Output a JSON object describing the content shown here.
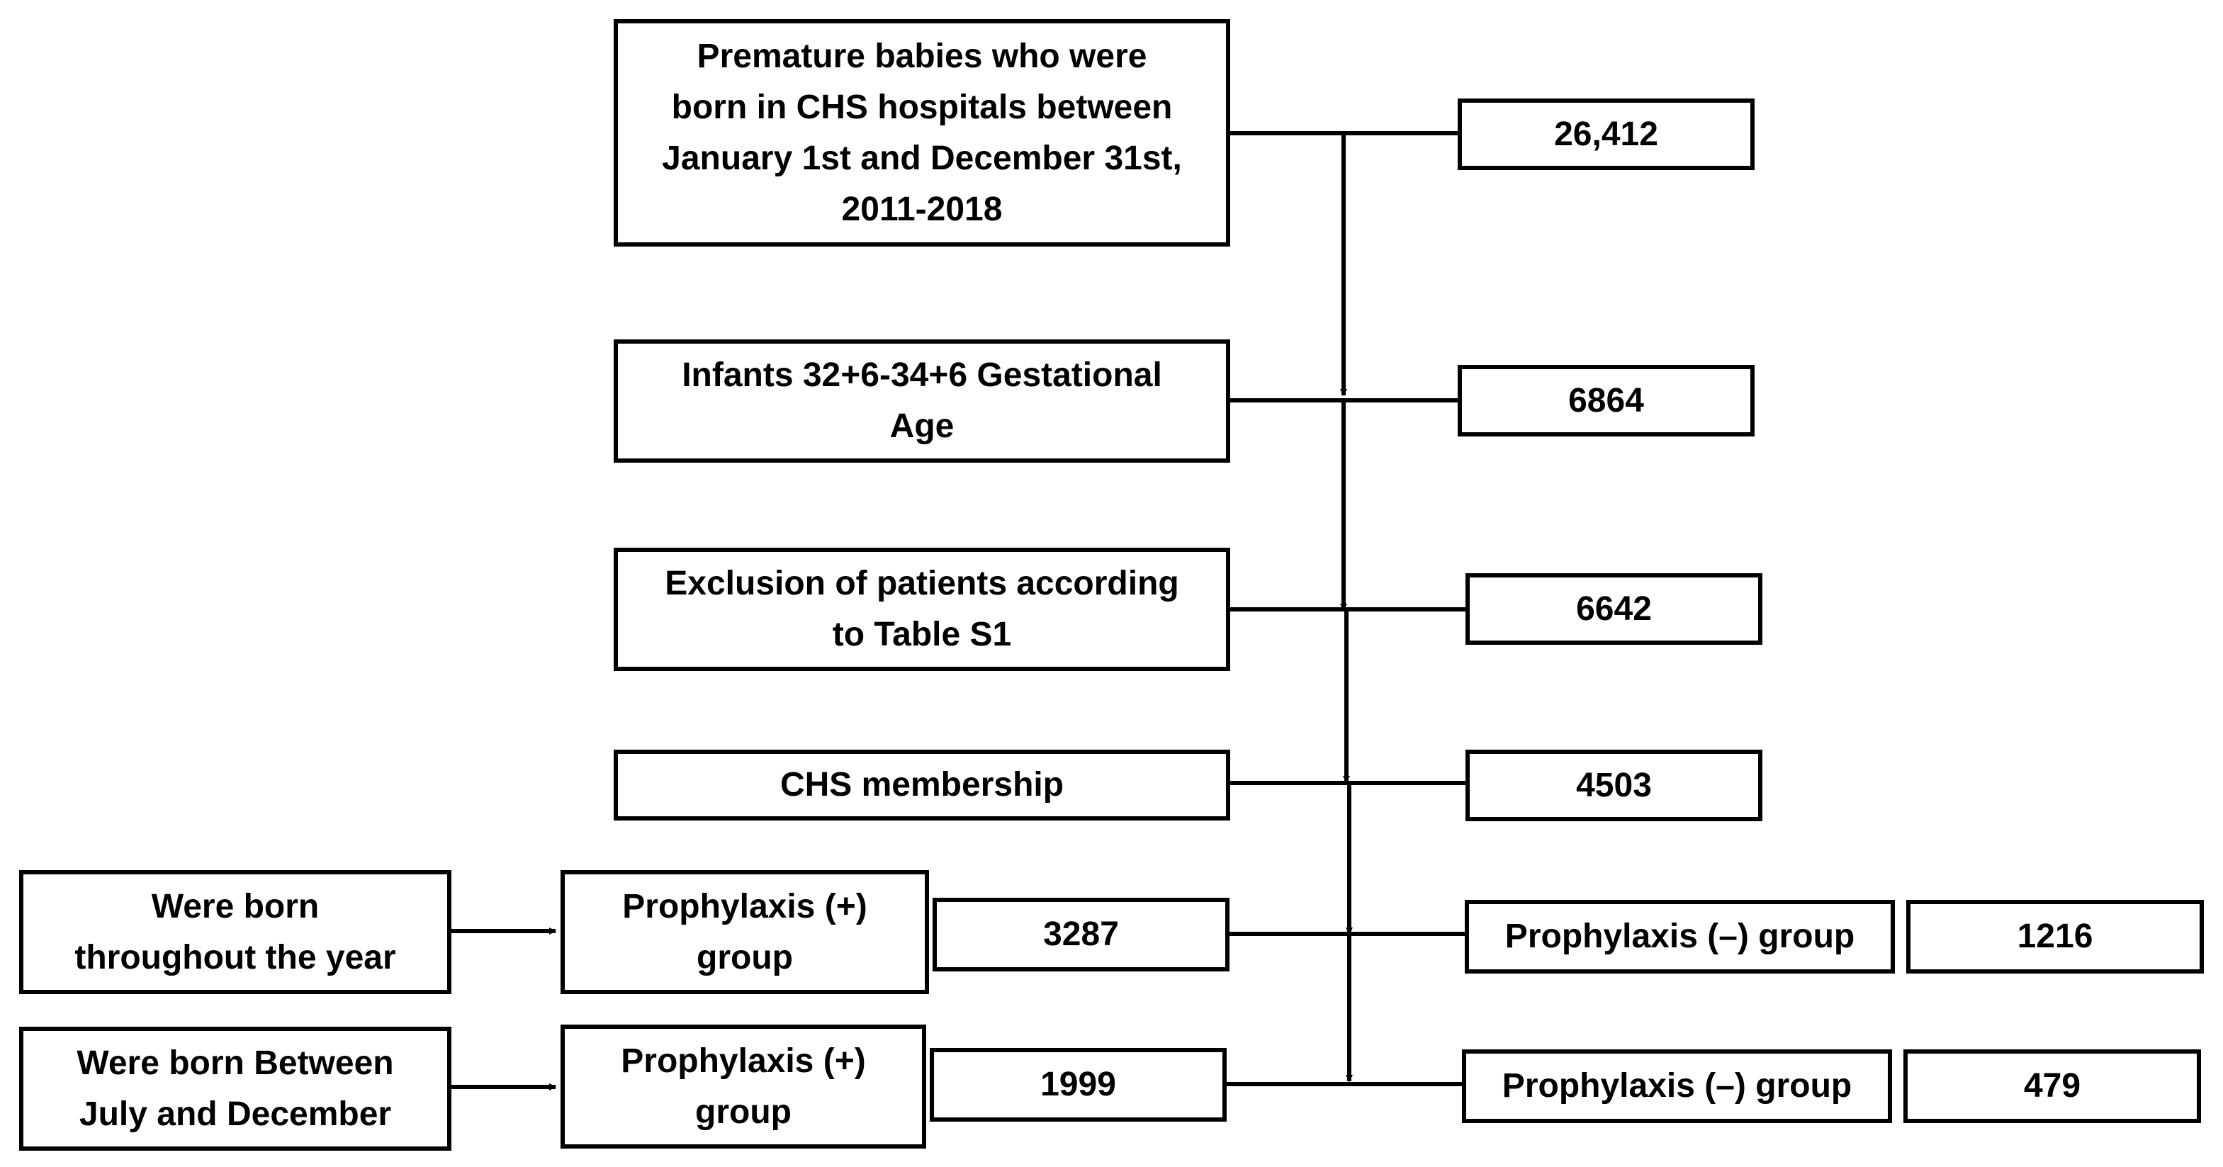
{
  "steps": [
    {
      "label": "Premature babies who were\nborn in CHS hospitals between\nJanuary 1st and December 31st,\n2011-2018",
      "count": "26,412"
    },
    {
      "label": "Infants 32+6-34+6 Gestational\nAge",
      "count": "6864"
    },
    {
      "label": "Exclusion of patients according\nto Table S1",
      "count": "6642"
    },
    {
      "label": "CHS membership",
      "count": "4503"
    }
  ],
  "full_year": {
    "cohort_label": "Were born\nthroughout the year",
    "prophylaxis_pos_label": "Prophylaxis (+)\ngroup",
    "prophylaxis_pos_count": "3287",
    "prophylaxis_neg_label": "Prophylaxis (–) group",
    "prophylaxis_neg_count": "1216"
  },
  "july_dec": {
    "cohort_label": "Were born Between\nJuly and December",
    "prophylaxis_pos_label": "Prophylaxis (+)\ngroup",
    "prophylaxis_pos_count": "1999",
    "prophylaxis_neg_label": "Prophylaxis (–) group",
    "prophylaxis_neg_count": "479"
  },
  "colors": {
    "line": "#000000",
    "box_fill": "#ffffff",
    "text": "#000000"
  }
}
